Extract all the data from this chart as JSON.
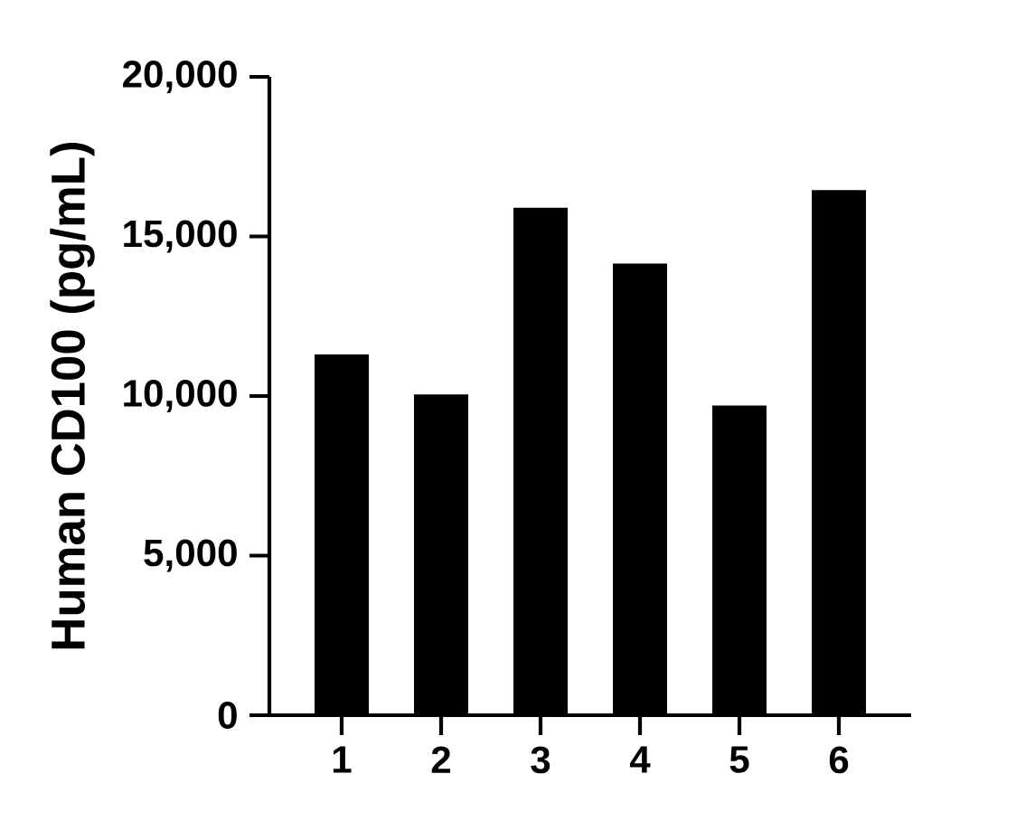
{
  "chart_data": {
    "type": "bar",
    "ylabel": "Human CD100 (pg/mL)",
    "categories": [
      "1",
      "2",
      "3",
      "4",
      "5",
      "6"
    ],
    "values": [
      11300,
      10050,
      15900,
      14150,
      9700,
      16450
    ],
    "color": "#000000",
    "ylim": [
      0,
      20000
    ],
    "yticks": [
      {
        "value": 0,
        "label": "0"
      },
      {
        "value": 5000,
        "label": "5,000"
      },
      {
        "value": 10000,
        "label": "10,000"
      },
      {
        "value": 15000,
        "label": "15,000"
      },
      {
        "value": 20000,
        "label": "20,000"
      }
    ]
  }
}
